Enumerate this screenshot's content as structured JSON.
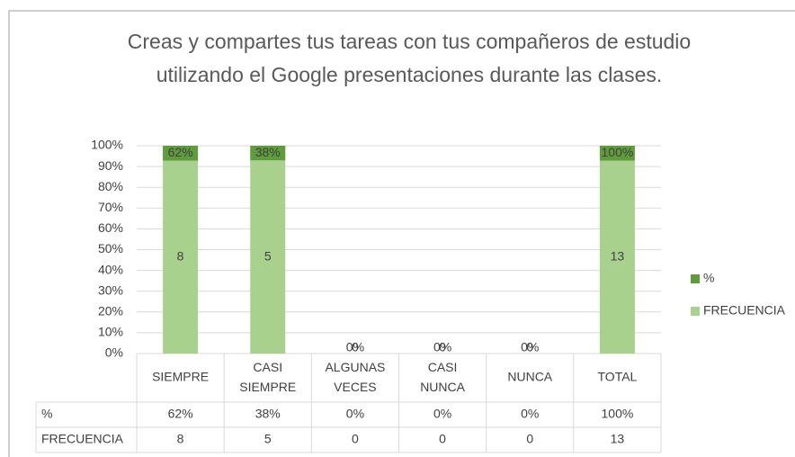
{
  "chart_data": {
    "type": "bar",
    "stacking": "percent",
    "title": "Creas y compartes tus tareas con tus compañeros de estudio utilizando el Google presentaciones durante las clases.",
    "categories": [
      "SIEMPRE",
      "CASI SIEMPRE",
      "ALGUNAS VECES",
      "CASI NUNCA",
      "NUNCA",
      "TOTAL"
    ],
    "series": [
      {
        "name": "%",
        "color": "#5e9c3c",
        "values": [
          0.62,
          0.38,
          0,
          0,
          0,
          1
        ],
        "value_labels": [
          "62%",
          "38%",
          "0%",
          "0%",
          "0%",
          "100%"
        ]
      },
      {
        "name": "FRECUENCIA",
        "color": "#a9d18e",
        "values": [
          8,
          5,
          0,
          0,
          0,
          13
        ]
      }
    ],
    "ylim": [
      0,
      100
    ],
    "yticks": [
      {
        "value": 0,
        "label": "0%"
      },
      {
        "value": 10,
        "label": "10%"
      },
      {
        "value": 20,
        "label": "20%"
      },
      {
        "value": 30,
        "label": "30%"
      },
      {
        "value": 40,
        "label": "40%"
      },
      {
        "value": 50,
        "label": "50%"
      },
      {
        "value": 60,
        "label": "60%"
      },
      {
        "value": 70,
        "label": "70%"
      },
      {
        "value": 80,
        "label": "80%"
      },
      {
        "value": 90,
        "label": "90%"
      },
      {
        "value": 100,
        "label": "100%"
      }
    ],
    "grid": true,
    "legend": "right",
    "data_table": true
  }
}
